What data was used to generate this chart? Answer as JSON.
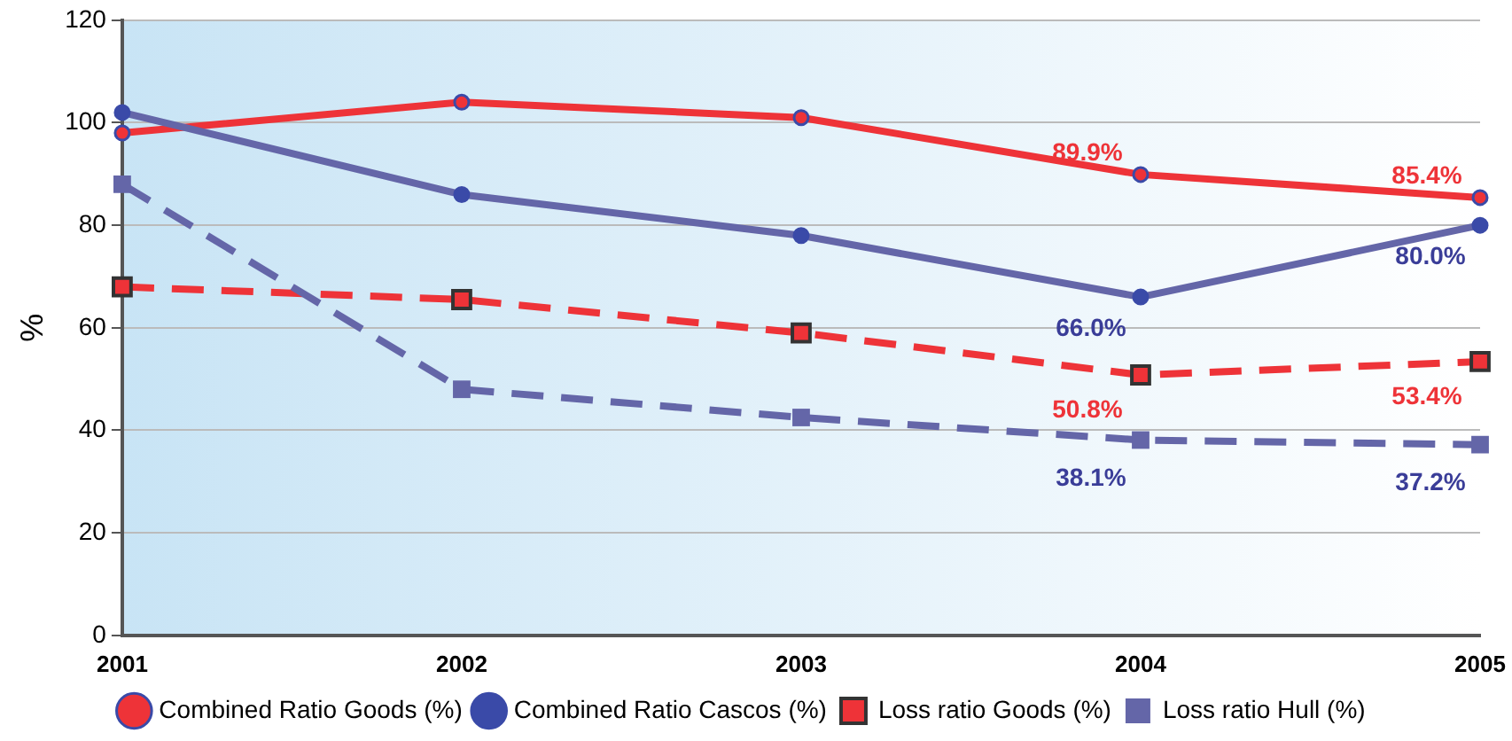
{
  "chart_data": {
    "type": "line",
    "ylabel": "%",
    "categories": [
      "2001",
      "2002",
      "2003",
      "2004",
      "2005"
    ],
    "ylim": [
      0,
      120
    ],
    "yticks": [
      0,
      20,
      40,
      60,
      80,
      100,
      120
    ],
    "grid": "y",
    "legend": "bottom",
    "series": [
      {
        "name": "Combined Ratio Goods (%)",
        "color": "#ee3338",
        "values": [
          98,
          104,
          101,
          89.9,
          85.4
        ],
        "value_labels": [
          null,
          null,
          null,
          "89.9%",
          "85.4%"
        ],
        "marker": "circle",
        "line_style": "solid"
      },
      {
        "name": "Combined Ratio Cascos (%)",
        "color": "#6466a8",
        "values": [
          102,
          86,
          78,
          66.0,
          80.0
        ],
        "value_labels": [
          null,
          null,
          null,
          "66.0%",
          "80.0%"
        ],
        "marker": "circle",
        "line_style": "solid"
      },
      {
        "name": "Loss ratio Goods (%)",
        "color": "#ee3338",
        "values": [
          68,
          65.5,
          59,
          50.8,
          53.4
        ],
        "value_labels": [
          null,
          null,
          null,
          "50.8%",
          "53.4%"
        ],
        "marker": "square",
        "line_style": "dashed"
      },
      {
        "name": "Loss ratio Hull (%)",
        "color": "#6466a8",
        "values": [
          88,
          48,
          42.5,
          38.1,
          37.2
        ],
        "value_labels": [
          null,
          null,
          null,
          "38.1%",
          "37.2%"
        ],
        "marker": "square",
        "line_style": "dashed"
      }
    ]
  }
}
